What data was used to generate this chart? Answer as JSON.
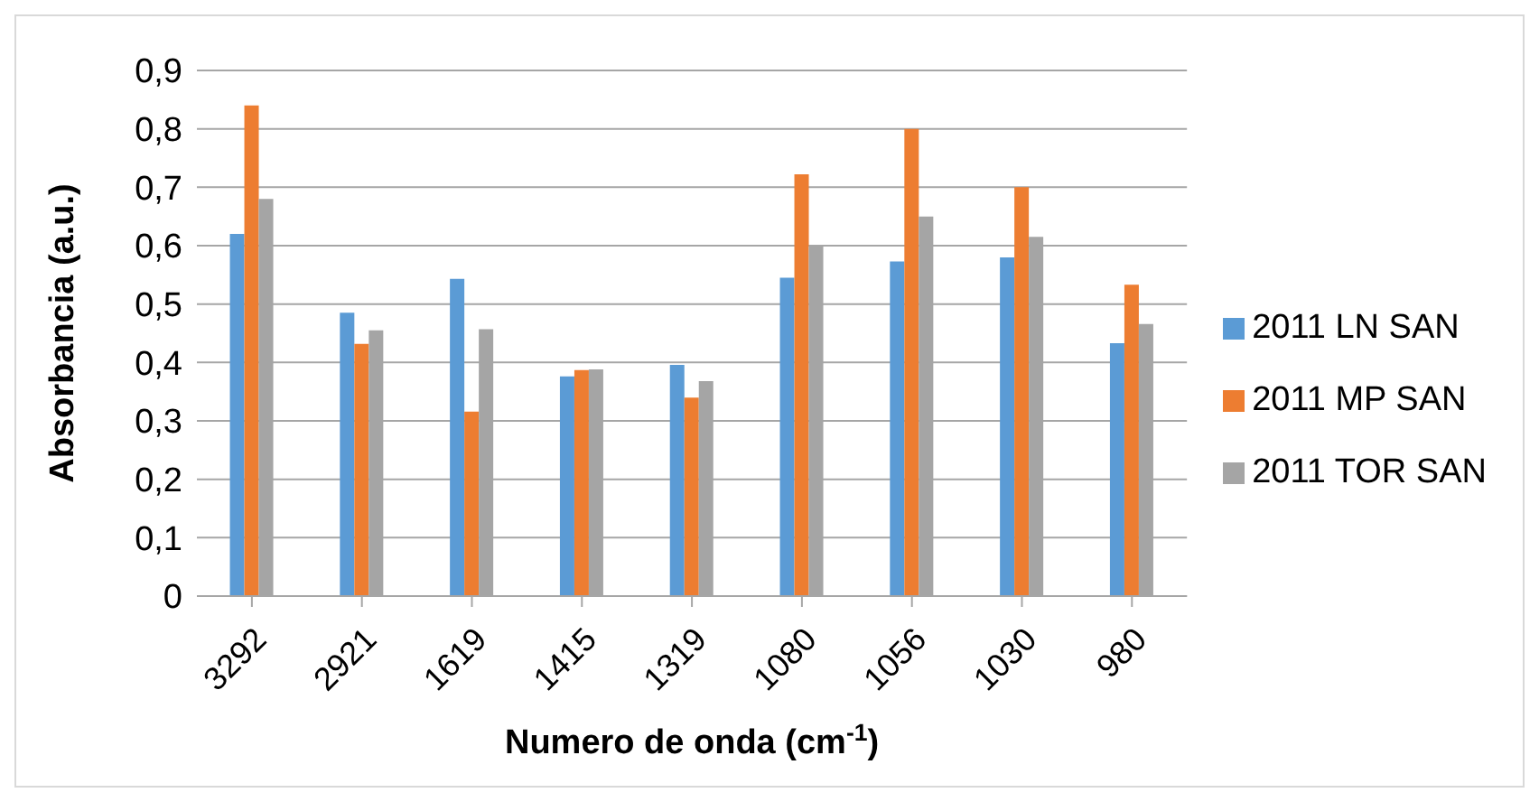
{
  "chart_data": {
    "type": "bar",
    "xlabel": "Numero de onda (cm$^{-1}$)",
    "ylabel": "Absorbancia (a.u.)",
    "categories": [
      "3292",
      "2921",
      "1619",
      "1415",
      "1319",
      "1080",
      "1056",
      "1030",
      "980"
    ],
    "series": [
      {
        "name": "2011 LN SAN",
        "color": "#5b9bd5",
        "values": [
          0.62,
          0.485,
          0.543,
          0.376,
          0.396,
          0.545,
          0.573,
          0.58,
          0.433
        ]
      },
      {
        "name": "2011 MP SAN",
        "color": "#ed7d31",
        "values": [
          0.84,
          0.432,
          0.316,
          0.387,
          0.34,
          0.722,
          0.8,
          0.7,
          0.533
        ]
      },
      {
        "name": "2011 TOR SAN",
        "color": "#a5a5a5",
        "values": [
          0.68,
          0.455,
          0.457,
          0.388,
          0.368,
          0.6,
          0.65,
          0.615,
          0.466
        ]
      }
    ],
    "ylim": [
      0,
      0.9
    ],
    "yticks": [
      {
        "value": 0,
        "label": "0"
      },
      {
        "value": 0.1,
        "label": "0,1"
      },
      {
        "value": 0.2,
        "label": "0,2"
      },
      {
        "value": 0.3,
        "label": "0,3"
      },
      {
        "value": 0.4,
        "label": "0,4"
      },
      {
        "value": 0.5,
        "label": "0,5"
      },
      {
        "value": 0.6,
        "label": "0,6"
      },
      {
        "value": 0.7,
        "label": "0,7"
      },
      {
        "value": 0.8,
        "label": "0,8"
      },
      {
        "value": 0.9,
        "label": "0,9"
      }
    ],
    "grid": "y",
    "legend": "right"
  }
}
